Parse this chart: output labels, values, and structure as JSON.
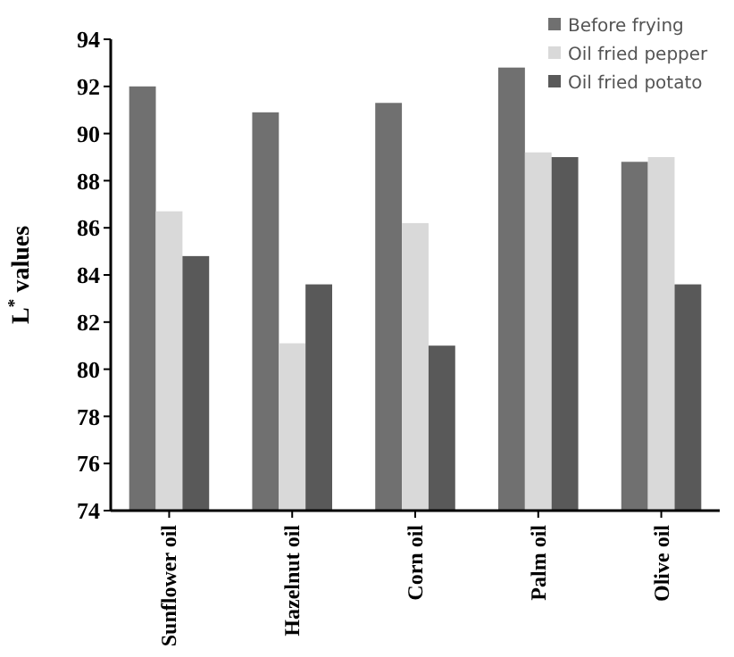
{
  "chart_data": {
    "type": "bar",
    "ylabel": "L$^{*}$ values",
    "categories": [
      "Sunflower oil",
      "Hazelnut oil",
      "Corn oil",
      "Palm oil",
      "Olive oil"
    ],
    "series": [
      {
        "name": "Before frying",
        "color": "#707070",
        "values": [
          92.0,
          90.9,
          91.3,
          92.8,
          88.8
        ]
      },
      {
        "name": "Oil fried pepper",
        "color": "#d9d9d9",
        "values": [
          86.7,
          81.1,
          86.2,
          89.2,
          89.0
        ]
      },
      {
        "name": "Oil fried potato",
        "color": "#595959",
        "values": [
          84.8,
          83.6,
          81.0,
          89.0,
          83.6
        ]
      }
    ],
    "ylim": [
      74,
      94
    ],
    "yticks": [
      74,
      76,
      78,
      80,
      82,
      84,
      86,
      88,
      90,
      92,
      94
    ],
    "grid": false,
    "legend": "top right"
  }
}
